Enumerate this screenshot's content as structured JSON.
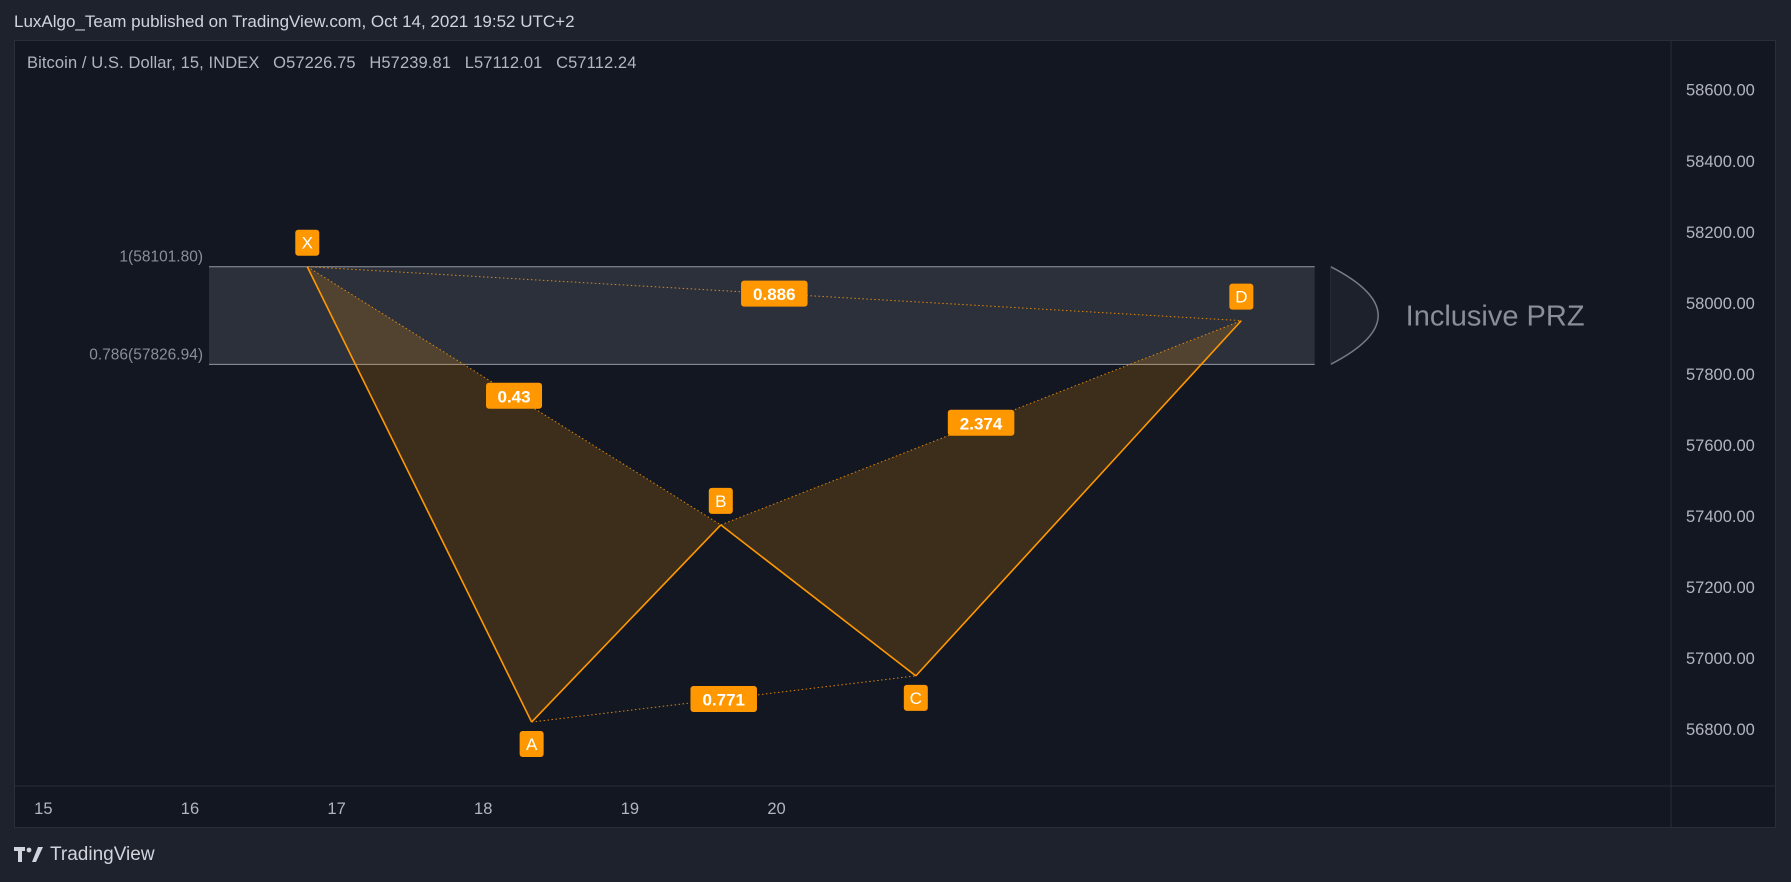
{
  "header": {
    "published_line": "LuxAlgo_Team published on TradingView.com, Oct 14, 2021 19:52 UTC+2"
  },
  "legend": {
    "symbol": "Bitcoin / U.S. Dollar, 15, INDEX",
    "open": "O57226.75",
    "high": "H57239.81",
    "low": "L57112.01",
    "close": "C57112.24"
  },
  "footer": {
    "brand": "TradingView"
  },
  "colors": {
    "pattern_line": "#ff9800",
    "pattern_fill": "rgba(255,152,0,0.18)",
    "label_bg": "#ff9800",
    "prz_fill": "rgba(120,123,134,0.25)",
    "prz_text": "#8a8e99",
    "background": "#131722"
  },
  "chart_data": {
    "type": "harmonic-pattern",
    "y_axis": {
      "ticks": [
        56800,
        57000,
        57200,
        57400,
        57600,
        57800,
        58000,
        58200,
        58400,
        58600
      ],
      "tick_labels": [
        "56800.00",
        "57000.00",
        "57200.00",
        "57400.00",
        "57600.00",
        "57800.00",
        "58000.00",
        "58200.00",
        "58400.00",
        "58600.00"
      ],
      "range": [
        56640,
        58740
      ]
    },
    "x_axis": {
      "ticks": [
        15,
        16,
        17,
        18,
        19,
        20
      ],
      "tick_labels": [
        "15",
        "16",
        "17",
        "18",
        "19",
        "20"
      ],
      "range": [
        14.8,
        26.1
      ]
    },
    "points": [
      {
        "label": "X",
        "x": 16.8,
        "y": 58101.8
      },
      {
        "label": "A",
        "x": 18.33,
        "y": 56820
      },
      {
        "label": "B",
        "x": 19.62,
        "y": 57375
      },
      {
        "label": "C",
        "x": 20.95,
        "y": 56950
      },
      {
        "label": "D",
        "x": 23.17,
        "y": 57950
      }
    ],
    "ratios": [
      {
        "value": "0.43",
        "from": "X",
        "to": "B"
      },
      {
        "value": "0.771",
        "from": "A",
        "to": "C"
      },
      {
        "value": "2.374",
        "from": "B",
        "to": "D"
      },
      {
        "value": "0.886",
        "from": "X",
        "to": "D"
      }
    ],
    "prz": {
      "label": "Inclusive PRZ",
      "top": 58101.8,
      "bottom": 57826.94,
      "top_label": "1(58101.80)",
      "bottom_label": "0.786(57826.94)",
      "x_start": 16.13,
      "x_end": 23.67
    }
  }
}
